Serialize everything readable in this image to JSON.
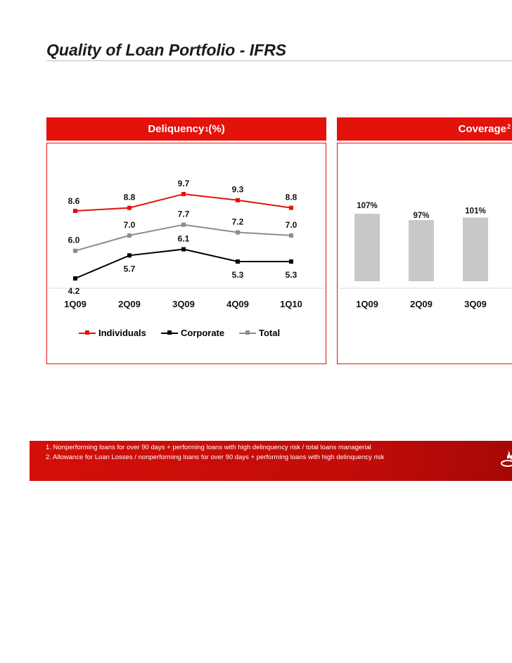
{
  "title": "Quality of Loan Portfolio - IFRS",
  "colors": {
    "accent": "#e3120b",
    "individuals": "#e3120b",
    "corporate": "#000000",
    "total": "#8c8c8c",
    "bars": "#c8c8c8"
  },
  "footnotes": [
    "1. Nonperforming loans for over 90 days + performing loans with high delinquency risk / total loans managerial",
    "2. Allowance for Loan Losses / nonperforming loans for over 90 days + performing loans with high delinquency risk"
  ],
  "chart_data": [
    {
      "type": "line",
      "title": "Deliquency",
      "title_sup": "1",
      "title_suffix": " (%)",
      "categories": [
        "1Q09",
        "2Q09",
        "3Q09",
        "4Q09",
        "1Q10"
      ],
      "series": [
        {
          "name": "Individuals",
          "values": [
            8.6,
            8.8,
            9.7,
            9.3,
            8.8
          ]
        },
        {
          "name": "Corporate",
          "values": [
            4.2,
            5.7,
            6.1,
            5.3,
            5.3
          ]
        },
        {
          "name": "Total",
          "values": [
            6.0,
            7.0,
            7.7,
            7.2,
            7.0
          ]
        }
      ],
      "value_labels": {
        "Individuals": [
          "8.6",
          "8.8",
          "9.7",
          "9.3",
          "8.8"
        ],
        "Corporate": [
          "4.2",
          "5.7",
          "6.1",
          "5.3",
          "5.3"
        ],
        "Total": [
          "6.0",
          "7.0",
          "7.7",
          "7.2",
          "7.0"
        ]
      },
      "legend": "bottom",
      "grid": false
    },
    {
      "type": "bar",
      "title": "Coverage",
      "title_sup": "2",
      "categories": [
        "1Q09",
        "2Q09",
        "3Q09"
      ],
      "values": [
        107,
        97,
        101
      ],
      "value_labels": [
        "107%",
        "97%",
        "101%"
      ],
      "grid": false
    }
  ]
}
